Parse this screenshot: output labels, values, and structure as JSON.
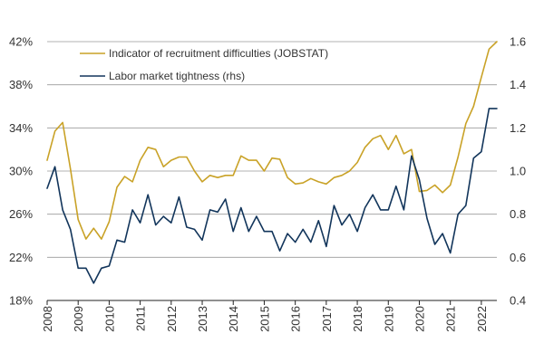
{
  "chart_data": {
    "type": "line",
    "title": "",
    "xlabel": "",
    "ylabel_left": "",
    "ylabel_right": "",
    "x_ticks": [
      "2008",
      "2009",
      "2010",
      "2011",
      "2012",
      "2013",
      "2014",
      "2015",
      "2016",
      "2017",
      "2018",
      "2019",
      "2020",
      "2021",
      "2022"
    ],
    "x_range": [
      2008.0,
      2022.5
    ],
    "y_left": {
      "range": [
        18,
        42
      ],
      "ticks": [
        18,
        22,
        26,
        30,
        34,
        38,
        42
      ],
      "tick_labels": [
        "18%",
        "22%",
        "26%",
        "30%",
        "34%",
        "38%",
        "42%"
      ]
    },
    "y_right": {
      "range": [
        0.4,
        1.6
      ],
      "ticks": [
        0.4,
        0.6,
        0.8,
        1.0,
        1.2,
        1.4,
        1.6
      ],
      "tick_labels": [
        "0.4",
        "0.6",
        "0.8",
        "1.0",
        "1.2",
        "1.4",
        "1.6"
      ]
    },
    "grid": true,
    "legend_position": "top-left",
    "series": [
      {
        "name": "Indicator of recruitment difficulties (JOBSTAT)",
        "axis": "left",
        "color": "#c9a227",
        "x": [
          2008.0,
          2008.25,
          2008.5,
          2008.75,
          2009.0,
          2009.25,
          2009.5,
          2009.75,
          2010.0,
          2010.25,
          2010.5,
          2010.75,
          2011.0,
          2011.25,
          2011.5,
          2011.75,
          2012.0,
          2012.25,
          2012.5,
          2012.75,
          2013.0,
          2013.25,
          2013.5,
          2013.75,
          2014.0,
          2014.25,
          2014.5,
          2014.75,
          2015.0,
          2015.25,
          2015.5,
          2015.75,
          2016.0,
          2016.25,
          2016.5,
          2016.75,
          2017.0,
          2017.25,
          2017.5,
          2017.75,
          2018.0,
          2018.25,
          2018.5,
          2018.75,
          2019.0,
          2019.25,
          2019.5,
          2019.75,
          2020.0,
          2020.25,
          2020.5,
          2020.75,
          2021.0,
          2021.25,
          2021.5,
          2021.75,
          2022.0,
          2022.25,
          2022.5
        ],
        "values": [
          31.0,
          33.7,
          34.5,
          30.2,
          25.5,
          23.7,
          24.7,
          23.7,
          25.3,
          28.5,
          29.5,
          29.0,
          31.0,
          32.2,
          32.0,
          30.4,
          31.0,
          31.3,
          31.3,
          30.0,
          29.0,
          29.6,
          29.4,
          29.6,
          29.6,
          31.4,
          31.0,
          31.0,
          30.0,
          31.2,
          31.1,
          29.4,
          28.8,
          28.9,
          29.3,
          29.0,
          28.8,
          29.4,
          29.6,
          30.0,
          30.8,
          32.2,
          33.0,
          33.3,
          32.0,
          33.3,
          31.6,
          32.0,
          28.1,
          28.2,
          28.7,
          28.0,
          28.7,
          31.3,
          34.4,
          36.0,
          38.7,
          41.3,
          42.0
        ]
      },
      {
        "name": "Labor market tightness (rhs)",
        "axis": "right",
        "color": "#12355b",
        "x": [
          2008.0,
          2008.25,
          2008.5,
          2008.75,
          2009.0,
          2009.25,
          2009.5,
          2009.75,
          2010.0,
          2010.25,
          2010.5,
          2010.75,
          2011.0,
          2011.25,
          2011.5,
          2011.75,
          2012.0,
          2012.25,
          2012.5,
          2012.75,
          2013.0,
          2013.25,
          2013.5,
          2013.75,
          2014.0,
          2014.25,
          2014.5,
          2014.75,
          2015.0,
          2015.25,
          2015.5,
          2015.75,
          2016.0,
          2016.25,
          2016.5,
          2016.75,
          2017.0,
          2017.25,
          2017.5,
          2017.75,
          2018.0,
          2018.25,
          2018.5,
          2018.75,
          2019.0,
          2019.25,
          2019.5,
          2019.75,
          2020.0,
          2020.25,
          2020.5,
          2020.75,
          2021.0,
          2021.25,
          2021.5,
          2021.75,
          2022.0,
          2022.25,
          2022.5
        ],
        "values": [
          0.92,
          1.02,
          0.82,
          0.73,
          0.55,
          0.55,
          0.48,
          0.55,
          0.56,
          0.68,
          0.67,
          0.82,
          0.76,
          0.89,
          0.75,
          0.79,
          0.76,
          0.88,
          0.74,
          0.73,
          0.68,
          0.82,
          0.81,
          0.87,
          0.72,
          0.83,
          0.72,
          0.79,
          0.72,
          0.72,
          0.63,
          0.71,
          0.67,
          0.73,
          0.67,
          0.77,
          0.65,
          0.84,
          0.75,
          0.8,
          0.72,
          0.83,
          0.89,
          0.82,
          0.82,
          0.93,
          0.82,
          1.07,
          0.96,
          0.78,
          0.66,
          0.71,
          0.62,
          0.8,
          0.84,
          1.06,
          1.09,
          1.29,
          1.29
        ]
      }
    ]
  }
}
